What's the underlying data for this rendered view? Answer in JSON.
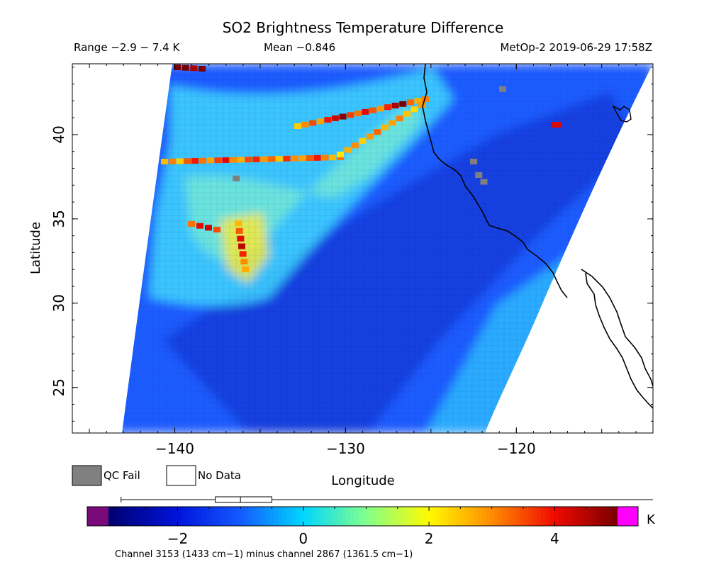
{
  "chart_data": {
    "type": "heatmap",
    "title": "SO2 Brightness Temperature Difference",
    "range_text": "Range −2.9 − 7.4 K",
    "mean_text": "Mean −0.846",
    "satellite_text": "MetOp-2 2019-06-29 17:58Z",
    "xlabel": "Longitude",
    "ylabel": "Latitude",
    "xlim": [
      -146,
      -112
    ],
    "ylim": [
      22.3,
      44.2
    ],
    "x_ticks": [
      {
        "value": -140,
        "label": "−140"
      },
      {
        "value": -130,
        "label": "−130"
      },
      {
        "value": -120,
        "label": "−120"
      }
    ],
    "y_ticks": [
      {
        "value": 25,
        "label": "25"
      },
      {
        "value": 30,
        "label": "30"
      },
      {
        "value": 35,
        "label": "35"
      },
      {
        "value": 40,
        "label": "40"
      }
    ],
    "legend": [
      {
        "label": "QC Fail",
        "color": "#808080"
      },
      {
        "label": "No Data",
        "color": "#ffffff"
      }
    ],
    "colorbar": {
      "range": [
        -3.1,
        5.0
      ],
      "unit": "K",
      "under_color": "#7a0a7a",
      "over_color": "#ff00ff",
      "ticks": [
        {
          "value": -2,
          "label": "−2"
        },
        {
          "value": 0,
          "label": "0"
        },
        {
          "value": 2,
          "label": "2"
        },
        {
          "value": 4,
          "label": "4"
        }
      ],
      "boxplot": {
        "min": -2.9,
        "q1": -1.4,
        "median": -1.0,
        "q3": -0.5,
        "max": 7.4
      }
    },
    "caption": "Channel 3153 (1433 cm−1) minus channel 2867 (1361.5 cm−1)",
    "features": [
      {
        "name": "background",
        "value": -1.3
      },
      {
        "name": "cool trough",
        "value": -1.9
      },
      {
        "name": "plume band",
        "value": 0.6
      },
      {
        "name": "northern streak",
        "value": 3.3
      },
      {
        "name": "southern hotspot",
        "value": 3.5
      },
      {
        "name": "coastal band",
        "value": 0.5
      }
    ],
    "qc_fail_points": [
      {
        "lon": -122.2,
        "lat": 37.6
      },
      {
        "lon": -121.9,
        "lat": 37.2
      },
      {
        "lon": -122.5,
        "lat": 38.4
      },
      {
        "lon": -136.4,
        "lat": 37.4
      },
      {
        "lon": -120.8,
        "lat": 42.7
      }
    ]
  }
}
